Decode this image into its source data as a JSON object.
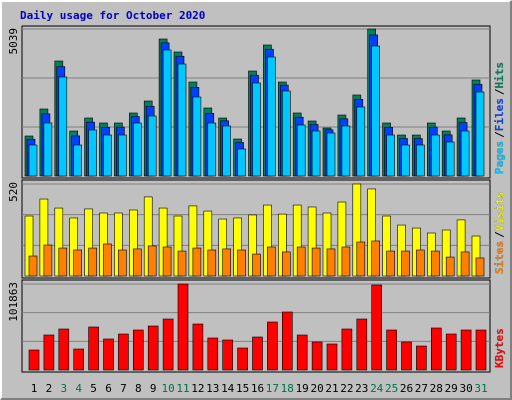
{
  "chart_data": {
    "type": "bar",
    "title": "Daily usage for October 2020",
    "title_color": "#0000c0",
    "background": "#c0c0c0",
    "legend_separator": "/",
    "categories": [
      "1",
      "2",
      "3",
      "4",
      "5",
      "6",
      "7",
      "8",
      "9",
      "10",
      "11",
      "12",
      "13",
      "14",
      "15",
      "16",
      "17",
      "18",
      "19",
      "20",
      "21",
      "22",
      "23",
      "24",
      "25",
      "26",
      "27",
      "28",
      "29",
      "30",
      "31"
    ],
    "category_colors": [
      "#000000",
      "#000000",
      "#007050",
      "#007050",
      "#000000",
      "#000000",
      "#000000",
      "#000000",
      "#000000",
      "#007050",
      "#007050",
      "#000000",
      "#000000",
      "#000000",
      "#000000",
      "#000000",
      "#007050",
      "#007050",
      "#000000",
      "#000000",
      "#000000",
      "#000000",
      "#000000",
      "#007050",
      "#007050",
      "#000000",
      "#000000",
      "#000000",
      "#000000",
      "#000000",
      "#007050"
    ],
    "panels": [
      {
        "ylim": [
          0,
          5039
        ],
        "yticks": [
          5039
        ],
        "ygrid": [
          1680,
          3360
        ],
        "series": [
          {
            "name": "Hits",
            "color": "#00805c",
            "values": [
              1371,
              2297,
              3942,
              1543,
              1988,
              1817,
              1817,
              2160,
              2571,
              4696,
              4251,
              3222,
              2331,
              1988,
              1268,
              3599,
              4491,
              3222,
              2160,
              1885,
              1645,
              2091,
              2777,
              5039,
              1817,
              1405,
              1405,
              1817,
              1543,
              1988,
              3291
            ]
          },
          {
            "name": "Files",
            "color": "#0040ff",
            "values": [
              1260,
              2130,
              3750,
              1375,
              1845,
              1670,
              1675,
              2040,
              2390,
              4565,
              4105,
              3040,
              2150,
              1890,
              1150,
              3455,
              4345,
              3115,
              2015,
              1765,
              1585,
              1960,
              2630,
              4835,
              1670,
              1285,
              1280,
              1675,
              1410,
              1830,
              3145
            ]
          },
          {
            "name": "Pages",
            "color": "#00c8ff",
            "values": [
              1063,
              1817,
              3394,
              1063,
              1577,
              1405,
              1405,
              1817,
              2057,
              4319,
              3839,
              2708,
              1817,
              1714,
              926,
              3188,
              4079,
              2914,
              1748,
              1543,
              1474,
              1714,
              2365,
              4456,
              1405,
              1063,
              1063,
              1405,
              1166,
              1543,
              2879
            ]
          }
        ]
      },
      {
        "ylim": [
          0,
          520
        ],
        "yticks": [
          520
        ],
        "ygrid": [
          173,
          347
        ],
        "series": [
          {
            "name": "Visits",
            "color": "#ffff00",
            "values": [
              339,
              435,
              384,
              328,
              379,
              356,
              356,
              373,
              447,
              384,
              339,
              396,
              367,
              322,
              328,
              345,
              401,
              350,
              401,
              390,
              356,
              418,
              520,
              492,
              339,
              288,
              271,
              243,
              260,
              317,
              226
            ]
          },
          {
            "name": "Sites",
            "color": "#ff8000",
            "values": [
              113,
              175,
              158,
              147,
              158,
              181,
              147,
              153,
              170,
              164,
              141,
              158,
              147,
              153,
              147,
              124,
              164,
              136,
              164,
              158,
              153,
              164,
              192,
              198,
              141,
              141,
              147,
              141,
              107,
              136,
              102
            ]
          }
        ]
      },
      {
        "ylim": [
          0,
          101863
        ],
        "yticks": [
          101863
        ],
        "ygrid": [
          33954,
          67909
        ],
        "series": [
          {
            "name": "KBytes",
            "color": "#ff0000",
            "values": [
              23689,
              41456,
              48563,
              24873,
              50932,
              36718,
              42640,
              47378,
              52116,
              60408,
              101863,
              54485,
              37902,
              35533,
              26057,
              39086,
              56853,
              68697,
              41456,
              33164,
              30795,
              48563,
              60408,
              100679,
              47378,
              33164,
              28426,
              49747,
              42640,
              47378,
              47378
            ]
          }
        ]
      }
    ]
  }
}
